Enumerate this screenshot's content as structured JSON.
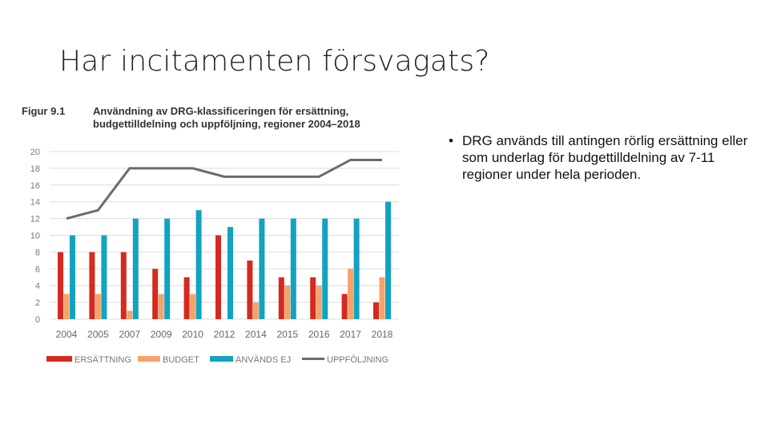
{
  "slide": {
    "title": "Har incitamenten försvagats?",
    "bullet_symbol": "•",
    "bullet_text": "DRG används till antingen rörlig ersättning eller som underlag för budgettilldelning av 7-11 regioner under hela perioden."
  },
  "figure": {
    "label": "Figur 9.1",
    "title_line1": "Användning av DRG-klassificeringen för ersättning,",
    "title_line2": "budgettilldelning och uppföljning, regioner 2004–2018"
  },
  "chart_data": {
    "type": "bar",
    "categories": [
      "2004",
      "2005",
      "2007",
      "2009",
      "2010",
      "2012",
      "2014",
      "2015",
      "2016",
      "2017",
      "2018"
    ],
    "series": [
      {
        "name": "ERSÄTTNING",
        "kind": "bar",
        "color": "#d42a20",
        "values": [
          8,
          8,
          8,
          6,
          5,
          10,
          7,
          5,
          5,
          3,
          2
        ]
      },
      {
        "name": "BUDGET",
        "kind": "bar",
        "color": "#f4a46a",
        "values": [
          3,
          3,
          1,
          3,
          3,
          0,
          2,
          4,
          4,
          6,
          5
        ]
      },
      {
        "name": "ANVÄNDS EJ",
        "kind": "bar",
        "color": "#13a3c0",
        "values": [
          10,
          10,
          12,
          12,
          13,
          11,
          12,
          12,
          12,
          12,
          14
        ]
      },
      {
        "name": "UPPFÖLJNING",
        "kind": "line",
        "color": "#6b6b6b",
        "values": [
          12,
          13,
          18,
          18,
          18,
          17,
          17,
          17,
          17,
          19,
          19
        ]
      }
    ],
    "yticks": [
      0,
      2,
      4,
      6,
      8,
      10,
      12,
      14,
      16,
      18,
      20
    ],
    "ylim": [
      0,
      20
    ],
    "grid": true,
    "legend": "bottom",
    "xlabel": "",
    "ylabel": ""
  }
}
